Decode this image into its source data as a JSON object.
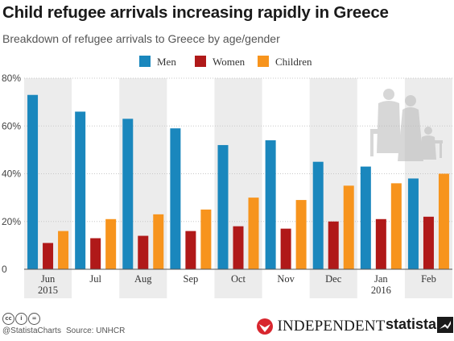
{
  "title": "Child refugee arrivals increasing rapidly in Greece",
  "subtitle": "Breakdown of refugee arrivals to Greece by age/gender",
  "chart_data": {
    "type": "bar",
    "categories": [
      "Jun\n2015",
      "Jul",
      "Aug",
      "Sep",
      "Oct",
      "Nov",
      "Dec",
      "Jan\n2016",
      "Feb"
    ],
    "series": [
      {
        "name": "Men",
        "color": "#1a87bd",
        "values": [
          73,
          66,
          63,
          59,
          52,
          54,
          45,
          43,
          38
        ]
      },
      {
        "name": "Women",
        "color": "#b01919",
        "values": [
          11,
          13,
          14,
          16,
          18,
          17,
          20,
          21,
          22
        ]
      },
      {
        "name": "Children",
        "color": "#f7941d",
        "values": [
          16,
          21,
          23,
          25,
          30,
          29,
          35,
          36,
          40
        ]
      }
    ],
    "y_ticks": [
      "0",
      "20%",
      "40%",
      "60%",
      "80%"
    ],
    "ylim": [
      0,
      80
    ],
    "grid": true,
    "legend_placement": "top-center",
    "alternating_column_shading": true
  },
  "footer": {
    "handle": "@StatistaCharts",
    "source": "Source: UNHCR",
    "independent": "INDEPENDENT",
    "statista": "statista",
    "cc_icons": [
      "cc",
      "i",
      "="
    ]
  }
}
